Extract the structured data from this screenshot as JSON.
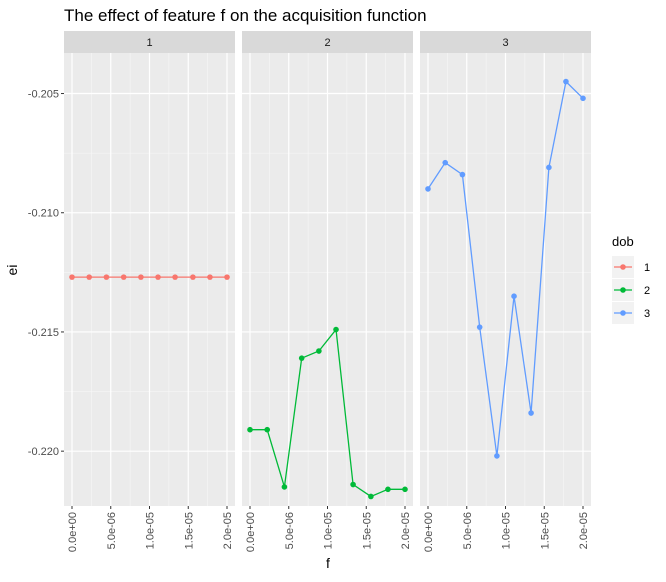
{
  "chart_data": {
    "type": "line",
    "title": "The effect of feature f on the acquisition function",
    "xlabel": "f",
    "ylabel": "ei",
    "facet_by": "dob",
    "xlim": [
      0,
      2e-05
    ],
    "ylim": [
      -0.2223,
      -0.2033
    ],
    "x_ticks": [
      0,
      5e-06,
      1e-05,
      1.5e-05,
      2e-05
    ],
    "x_tick_labels": [
      "0.0e+00",
      "5.0e-06",
      "1.0e-05",
      "1.5e-05",
      "2.0e-05"
    ],
    "y_ticks": [
      -0.22,
      -0.215,
      -0.21,
      -0.205
    ],
    "y_tick_labels": [
      "-0.220",
      "-0.215",
      "-0.210",
      "-0.205"
    ],
    "grid": true,
    "legend": {
      "title": "dob",
      "placement": "right",
      "entries": [
        {
          "label": "1",
          "color": "#F8766D"
        },
        {
          "label": "2",
          "color": "#00BA38"
        },
        {
          "label": "3",
          "color": "#619CFF"
        }
      ]
    },
    "facets": [
      "1",
      "2",
      "3"
    ],
    "x": [
      0,
      2.22e-06,
      4.44e-06,
      6.67e-06,
      8.89e-06,
      1.11e-05,
      1.33e-05,
      1.56e-05,
      1.78e-05,
      2e-05
    ],
    "series": [
      {
        "name": "1",
        "color": "#F8766D",
        "values": [
          -0.2127,
          -0.2127,
          -0.2127,
          -0.2127,
          -0.2127,
          -0.2127,
          -0.2127,
          -0.2127,
          -0.2127,
          -0.2127
        ]
      },
      {
        "name": "2",
        "color": "#00BA38",
        "values": [
          -0.2191,
          -0.2191,
          -0.2215,
          -0.2161,
          -0.2158,
          -0.2149,
          -0.2214,
          -0.2219,
          -0.2216,
          -0.2216
        ]
      },
      {
        "name": "3",
        "color": "#619CFF",
        "values": [
          -0.209,
          -0.2079,
          -0.2084,
          -0.2148,
          -0.2202,
          -0.2135,
          -0.2184,
          -0.2081,
          -0.2045,
          -0.2052
        ]
      }
    ]
  }
}
